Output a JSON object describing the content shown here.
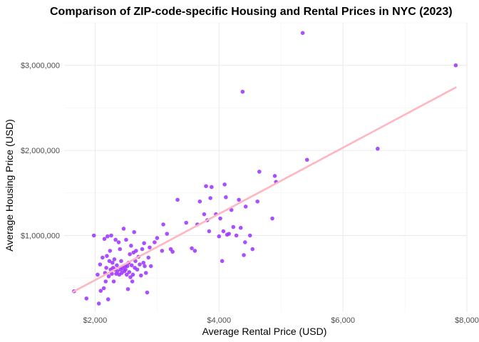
{
  "chart_data": {
    "type": "scatter",
    "title": "Comparison of ZIP-code-specific Housing and Rental Prices in NYC (2023)",
    "xlabel": "Average Rental Price (USD)",
    "ylabel": "Average Housing Price (USD)",
    "xlim": [
      1500,
      8000
    ],
    "ylim": [
      100000,
      3500000
    ],
    "x_ticks": [
      2000,
      4000,
      6000,
      8000
    ],
    "x_tick_labels": [
      "$2,000",
      "$4,000",
      "$6,000",
      "$8,000"
    ],
    "y_ticks": [
      1000000,
      2000000,
      3000000
    ],
    "y_tick_labels": [
      "$1,000,000",
      "$2,000,000",
      "$3,000,000"
    ],
    "grid": true,
    "point_color": "#9b30ff",
    "trend_color": "#ffb6c1",
    "trend_line": {
      "x": [
        1650,
        7820
      ],
      "y": [
        340000,
        2740000
      ]
    },
    "points": [
      {
        "x": 1660,
        "y": 345000
      },
      {
        "x": 1860,
        "y": 260000
      },
      {
        "x": 1980,
        "y": 1000000
      },
      {
        "x": 2040,
        "y": 540000
      },
      {
        "x": 2060,
        "y": 200000
      },
      {
        "x": 2080,
        "y": 660000
      },
      {
        "x": 2090,
        "y": 350000
      },
      {
        "x": 2120,
        "y": 740000
      },
      {
        "x": 2140,
        "y": 380000
      },
      {
        "x": 2150,
        "y": 960000
      },
      {
        "x": 2160,
        "y": 560000
      },
      {
        "x": 2170,
        "y": 460000
      },
      {
        "x": 2180,
        "y": 620000
      },
      {
        "x": 2190,
        "y": 760000
      },
      {
        "x": 2200,
        "y": 990000
      },
      {
        "x": 2210,
        "y": 250000
      },
      {
        "x": 2220,
        "y": 520000
      },
      {
        "x": 2230,
        "y": 700000
      },
      {
        "x": 2240,
        "y": 820000
      },
      {
        "x": 2250,
        "y": 600000
      },
      {
        "x": 2260,
        "y": 1000000
      },
      {
        "x": 2270,
        "y": 550000
      },
      {
        "x": 2280,
        "y": 680000
      },
      {
        "x": 2290,
        "y": 620000
      },
      {
        "x": 2300,
        "y": 460000
      },
      {
        "x": 2310,
        "y": 720000
      },
      {
        "x": 2320,
        "y": 600000
      },
      {
        "x": 2330,
        "y": 950000
      },
      {
        "x": 2340,
        "y": 550000
      },
      {
        "x": 2350,
        "y": 650000
      },
      {
        "x": 2360,
        "y": 580000
      },
      {
        "x": 2380,
        "y": 920000
      },
      {
        "x": 2390,
        "y": 540000
      },
      {
        "x": 2400,
        "y": 840000
      },
      {
        "x": 2410,
        "y": 600000
      },
      {
        "x": 2420,
        "y": 700000
      },
      {
        "x": 2430,
        "y": 560000
      },
      {
        "x": 2440,
        "y": 620000
      },
      {
        "x": 2460,
        "y": 1080000
      },
      {
        "x": 2470,
        "y": 580000
      },
      {
        "x": 2480,
        "y": 640000
      },
      {
        "x": 2490,
        "y": 600000
      },
      {
        "x": 2500,
        "y": 950000
      },
      {
        "x": 2510,
        "y": 540000
      },
      {
        "x": 2520,
        "y": 640000
      },
      {
        "x": 2530,
        "y": 370000
      },
      {
        "x": 2540,
        "y": 680000
      },
      {
        "x": 2550,
        "y": 570000
      },
      {
        "x": 2560,
        "y": 780000
      },
      {
        "x": 2570,
        "y": 510000
      },
      {
        "x": 2580,
        "y": 880000
      },
      {
        "x": 2590,
        "y": 650000
      },
      {
        "x": 2600,
        "y": 460000
      },
      {
        "x": 2610,
        "y": 540000
      },
      {
        "x": 2620,
        "y": 800000
      },
      {
        "x": 2630,
        "y": 1040000
      },
      {
        "x": 2640,
        "y": 620000
      },
      {
        "x": 2650,
        "y": 700000
      },
      {
        "x": 2660,
        "y": 820000
      },
      {
        "x": 2680,
        "y": 600000
      },
      {
        "x": 2700,
        "y": 750000
      },
      {
        "x": 2720,
        "y": 660000
      },
      {
        "x": 2740,
        "y": 530000
      },
      {
        "x": 2760,
        "y": 840000
      },
      {
        "x": 2780,
        "y": 680000
      },
      {
        "x": 2790,
        "y": 910000
      },
      {
        "x": 2800,
        "y": 640000
      },
      {
        "x": 2820,
        "y": 560000
      },
      {
        "x": 2840,
        "y": 330000
      },
      {
        "x": 2860,
        "y": 740000
      },
      {
        "x": 2880,
        "y": 860000
      },
      {
        "x": 2900,
        "y": 640000
      },
      {
        "x": 2960,
        "y": 920000
      },
      {
        "x": 3000,
        "y": 970000
      },
      {
        "x": 3080,
        "y": 820000
      },
      {
        "x": 3100,
        "y": 1130000
      },
      {
        "x": 3160,
        "y": 1020000
      },
      {
        "x": 3220,
        "y": 840000
      },
      {
        "x": 3250,
        "y": 810000
      },
      {
        "x": 3330,
        "y": 1420000
      },
      {
        "x": 3470,
        "y": 1150000
      },
      {
        "x": 3560,
        "y": 850000
      },
      {
        "x": 3610,
        "y": 820000
      },
      {
        "x": 3650,
        "y": 1130000
      },
      {
        "x": 3690,
        "y": 1400000
      },
      {
        "x": 3760,
        "y": 1250000
      },
      {
        "x": 3790,
        "y": 1580000
      },
      {
        "x": 3810,
        "y": 1180000
      },
      {
        "x": 3840,
        "y": 1050000
      },
      {
        "x": 3860,
        "y": 1440000
      },
      {
        "x": 3880,
        "y": 1570000
      },
      {
        "x": 3950,
        "y": 1250000
      },
      {
        "x": 4000,
        "y": 990000
      },
      {
        "x": 4020,
        "y": 1200000
      },
      {
        "x": 4050,
        "y": 700000
      },
      {
        "x": 4070,
        "y": 1050000
      },
      {
        "x": 4090,
        "y": 1600000
      },
      {
        "x": 4110,
        "y": 1450000
      },
      {
        "x": 4130,
        "y": 1010000
      },
      {
        "x": 4160,
        "y": 1020000
      },
      {
        "x": 4200,
        "y": 1300000
      },
      {
        "x": 4230,
        "y": 1100000
      },
      {
        "x": 4280,
        "y": 1000000
      },
      {
        "x": 4320,
        "y": 1420000
      },
      {
        "x": 4350,
        "y": 1090000
      },
      {
        "x": 4380,
        "y": 2690000
      },
      {
        "x": 4400,
        "y": 770000
      },
      {
        "x": 4420,
        "y": 920000
      },
      {
        "x": 4430,
        "y": 1340000
      },
      {
        "x": 4500,
        "y": 1000000
      },
      {
        "x": 4540,
        "y": 840000
      },
      {
        "x": 4620,
        "y": 1400000
      },
      {
        "x": 4650,
        "y": 1750000
      },
      {
        "x": 4860,
        "y": 1200000
      },
      {
        "x": 4900,
        "y": 1700000
      },
      {
        "x": 4920,
        "y": 1630000
      },
      {
        "x": 5350,
        "y": 3380000
      },
      {
        "x": 5420,
        "y": 1890000
      },
      {
        "x": 6560,
        "y": 2020000
      },
      {
        "x": 7820,
        "y": 3000000
      }
    ]
  }
}
